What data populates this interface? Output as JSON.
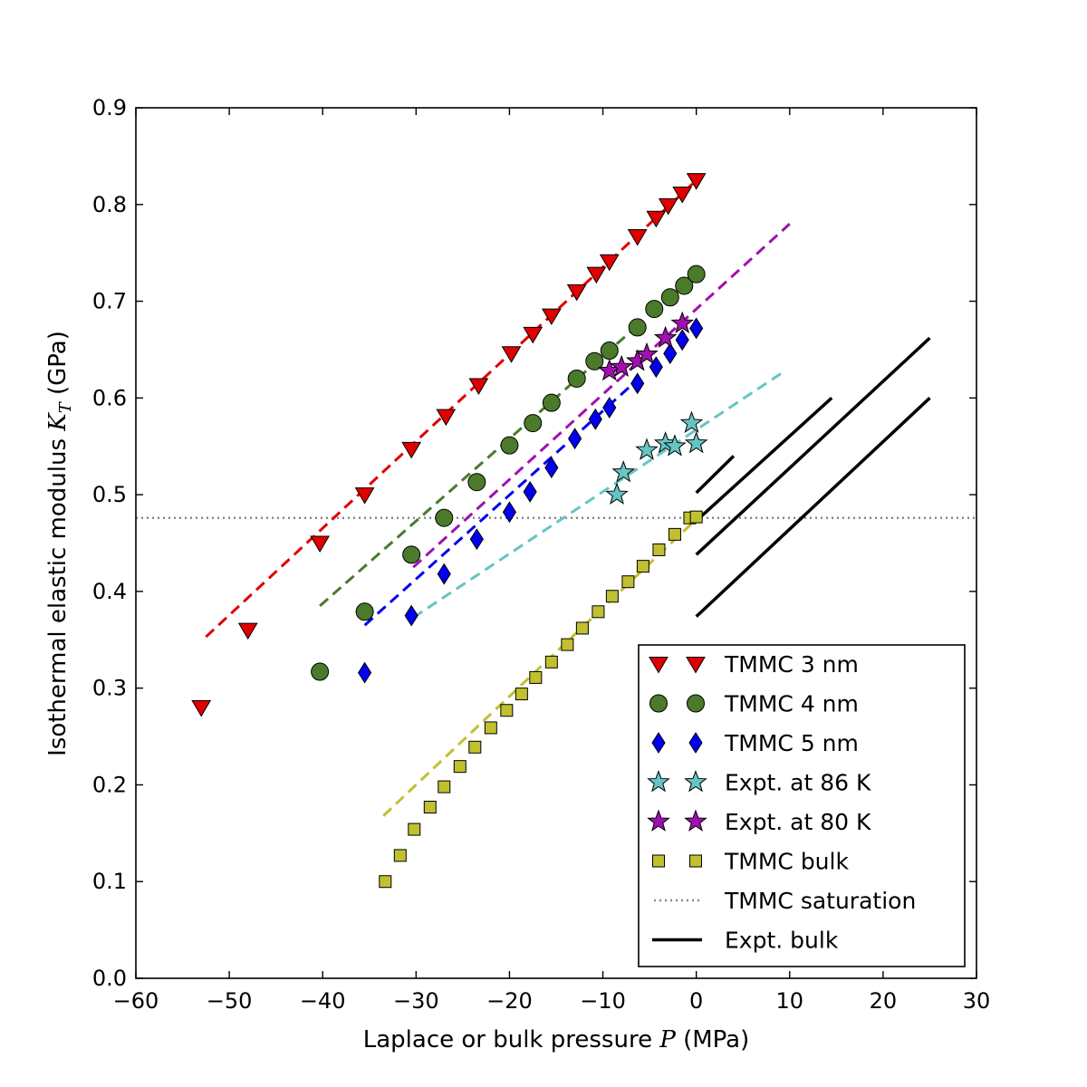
{
  "chart_data": {
    "type": "scatter",
    "title": "",
    "xlabel_prefix": "Laplace or bulk pressure ",
    "xlabel_var": "P",
    "xlabel_suffix": " (MPa)",
    "ylabel_prefix": "Isothermal elastic modulus ",
    "ylabel_var": "K",
    "ylabel_sub": "T",
    "ylabel_suffix": " (GPa)",
    "xlim": [
      -60,
      30
    ],
    "ylim": [
      0.0,
      0.9
    ],
    "xticks": [
      -60,
      -50,
      -40,
      -30,
      -20,
      -10,
      0,
      10,
      20,
      30
    ],
    "xtick_labels": [
      "−60",
      "−50",
      "−40",
      "−30",
      "−20",
      "−10",
      "0",
      "10",
      "20",
      "30"
    ],
    "yticks": [
      0.0,
      0.1,
      0.2,
      0.3,
      0.4,
      0.5,
      0.6,
      0.7,
      0.8,
      0.9
    ],
    "ytick_labels": [
      "0.0",
      "0.1",
      "0.2",
      "0.3",
      "0.4",
      "0.5",
      "0.6",
      "0.7",
      "0.8",
      "0.9"
    ],
    "grid": false,
    "legend_position": "bottom-right",
    "series": [
      {
        "name": "TMMC 3 nm",
        "marker": "triangle-down",
        "color": "#e00000",
        "x": [
          -53,
          -48,
          -40.3,
          -35.5,
          -30.5,
          -26.8,
          -23.3,
          -19.8,
          -17.5,
          -15.5,
          -12.8,
          -10.7,
          -9.3,
          -6.3,
          -4.3,
          -3,
          -1.5,
          0
        ],
        "y": [
          0.28,
          0.36,
          0.45,
          0.5,
          0.547,
          0.581,
          0.613,
          0.646,
          0.666,
          0.685,
          0.71,
          0.728,
          0.741,
          0.767,
          0.786,
          0.799,
          0.811,
          0.825
        ]
      },
      {
        "name": "TMMC 4 nm",
        "marker": "circle",
        "color": "#4a7a2a",
        "x": [
          -40.3,
          -35.5,
          -30.5,
          -27,
          -23.5,
          -20,
          -17.5,
          -15.5,
          -12.8,
          -10.9,
          -9.3,
          -6.3,
          -4.5,
          -2.8,
          -1.3,
          0
        ],
        "y": [
          0.317,
          0.379,
          0.438,
          0.476,
          0.513,
          0.551,
          0.574,
          0.595,
          0.62,
          0.638,
          0.649,
          0.673,
          0.692,
          0.704,
          0.716,
          0.728
        ]
      },
      {
        "name": "TMMC 5 nm",
        "marker": "diamond",
        "color": "#0000ee",
        "x": [
          -35.5,
          -30.5,
          -27,
          -23.5,
          -20,
          -17.8,
          -15.5,
          -13,
          -10.8,
          -9.3,
          -6.3,
          -4.3,
          -2.8,
          -1.5,
          0
        ],
        "y": [
          0.316,
          0.375,
          0.418,
          0.454,
          0.482,
          0.503,
          0.528,
          0.558,
          0.578,
          0.59,
          0.615,
          0.632,
          0.646,
          0.66,
          0.672
        ]
      },
      {
        "name": "Expt. at 86 K",
        "marker": "star",
        "color": "#66c4c4",
        "x": [
          -8.5,
          -7.8,
          -5.3,
          -3.3,
          -2.3,
          -0.5,
          0
        ],
        "y": [
          0.5,
          0.523,
          0.546,
          0.553,
          0.55,
          0.574,
          0.553
        ]
      },
      {
        "name": "Expt. at 80 K",
        "marker": "star",
        "color": "#a010b0",
        "x": [
          -9.3,
          -8,
          -6.3,
          -5.3,
          -3.3,
          -1.5
        ],
        "y": [
          0.628,
          0.632,
          0.638,
          0.645,
          0.662,
          0.677
        ]
      },
      {
        "name": "TMMC bulk",
        "marker": "square",
        "color": "#c0c030",
        "x": [
          -33.3,
          -31.7,
          -30.2,
          -28.5,
          -27,
          -25.3,
          -23.7,
          -22,
          -20.3,
          -18.7,
          -17.2,
          -15.5,
          -13.8,
          -12.2,
          -10.5,
          -9,
          -7.3,
          -5.7,
          -4,
          -2.3,
          -0.7,
          0
        ],
        "y": [
          0.1,
          0.127,
          0.154,
          0.177,
          0.198,
          0.219,
          0.239,
          0.259,
          0.277,
          0.294,
          0.311,
          0.327,
          0.345,
          0.362,
          0.379,
          0.395,
          0.41,
          0.426,
          0.443,
          0.459,
          0.476,
          0.477
        ]
      }
    ],
    "fit_lines": [
      {
        "series": "TMMC 3 nm",
        "color": "#e00000",
        "x": [
          -52.5,
          0
        ],
        "y": [
          0.353,
          0.825
        ]
      },
      {
        "series": "TMMC 4 nm",
        "color": "#4a7a2a",
        "x": [
          -40.3,
          -6.5
        ],
        "y": [
          0.385,
          0.673
        ]
      },
      {
        "series": "TMMC 5 nm",
        "color": "#0000ee",
        "x": [
          -35.5,
          -6.5
        ],
        "y": [
          0.365,
          0.617
        ]
      },
      {
        "series": "Expt. at 86 K",
        "color": "#66c4c4",
        "x": [
          -30.3,
          9.5
        ],
        "y": [
          0.373,
          0.628
        ]
      },
      {
        "series": "Expt. at 80 K",
        "color": "#a010b0",
        "x": [
          -30.3,
          10
        ],
        "y": [
          0.425,
          0.78
        ]
      },
      {
        "series": "TMMC bulk",
        "color": "#c0c030",
        "x": [
          -33.5,
          -0.5
        ],
        "y": [
          0.168,
          0.47
        ]
      }
    ],
    "saturation_line": {
      "name": "TMMC saturation",
      "color": "#888888",
      "y": 0.476
    },
    "expt_bulk_lines": {
      "name": "Expt. bulk",
      "color": "#000000",
      "segments": [
        {
          "x": [
            0,
            4
          ],
          "y": [
            0.502,
            0.54
          ]
        },
        {
          "x": [
            0,
            14.5
          ],
          "y": [
            0.473,
            0.6
          ]
        },
        {
          "x": [
            0,
            25
          ],
          "y": [
            0.438,
            0.662
          ]
        },
        {
          "x": [
            0,
            25
          ],
          "y": [
            0.374,
            0.6
          ]
        }
      ]
    },
    "legend": [
      {
        "label": "TMMC 3 nm",
        "type": "marker",
        "series": "TMMC 3 nm"
      },
      {
        "label": "TMMC 4 nm",
        "type": "marker",
        "series": "TMMC 4 nm"
      },
      {
        "label": "TMMC 5 nm",
        "type": "marker",
        "series": "TMMC 5 nm"
      },
      {
        "label": "Expt. at 86 K",
        "type": "marker",
        "series": "Expt. at 86 K"
      },
      {
        "label": "Expt. at 80 K",
        "type": "marker",
        "series": "Expt. at 80 K"
      },
      {
        "label": "TMMC bulk",
        "type": "marker",
        "series": "TMMC bulk"
      },
      {
        "label": "TMMC saturation",
        "type": "dotted"
      },
      {
        "label": "Expt. bulk",
        "type": "solid"
      }
    ]
  }
}
